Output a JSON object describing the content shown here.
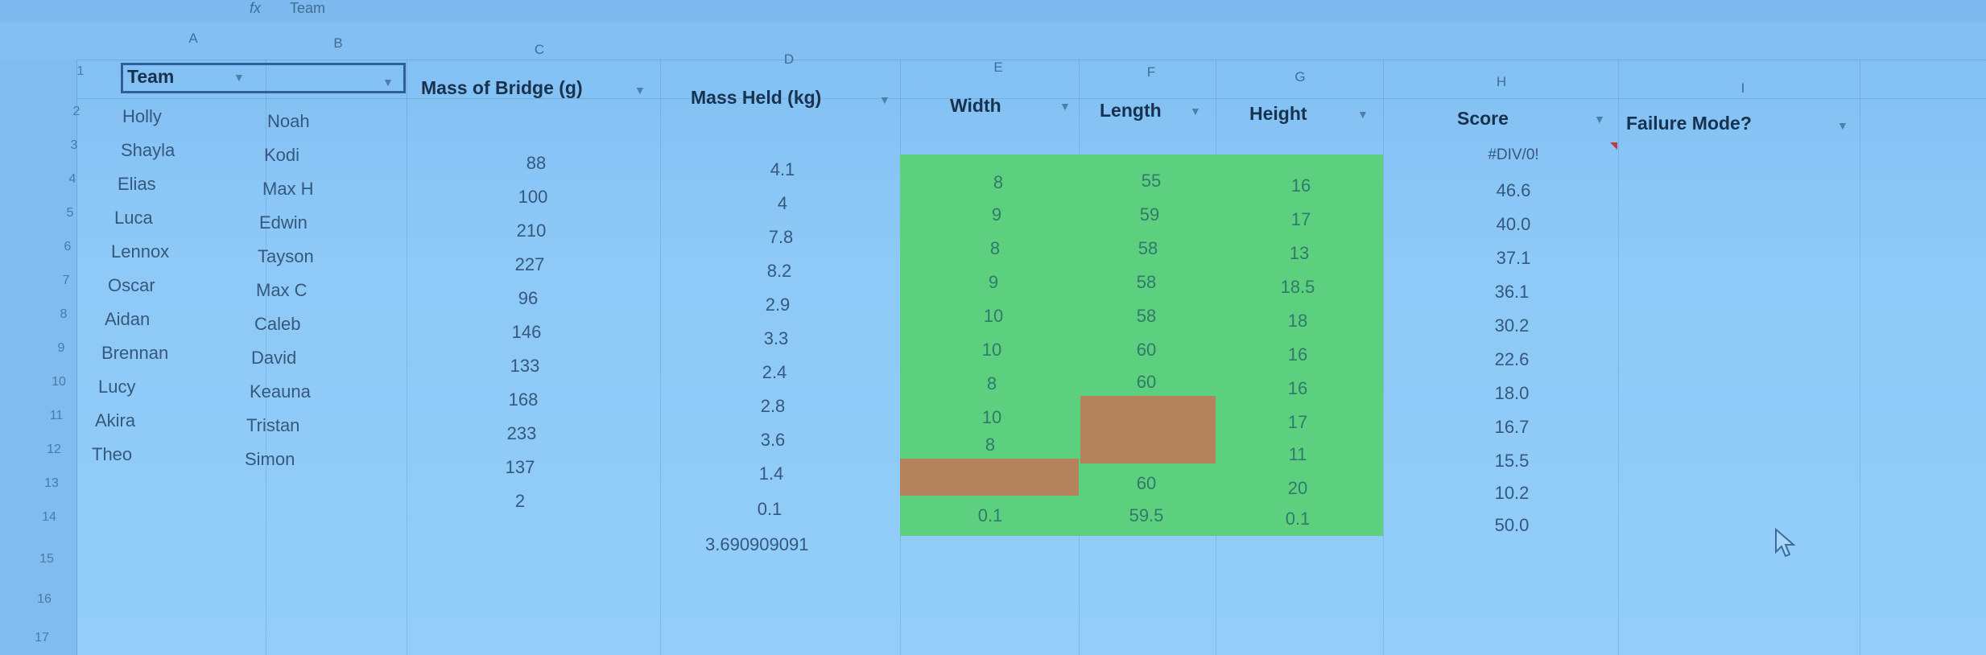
{
  "formula_bar": {
    "fx": "fx",
    "value": "Team"
  },
  "columns": [
    "A",
    "B",
    "C",
    "D",
    "E",
    "F",
    "G",
    "H",
    "I"
  ],
  "rows": [
    "1",
    "2",
    "3",
    "4",
    "5",
    "6",
    "7",
    "8",
    "9",
    "10",
    "11",
    "12",
    "13",
    "14",
    "15",
    "16",
    "17"
  ],
  "headers": {
    "team": "Team",
    "mass_bridge": "Mass of Bridge (g)",
    "mass_held": "Mass Held (kg)",
    "width": "Width",
    "length": "Length",
    "height": "Height",
    "score": "Score",
    "failure": "Failure Mode?"
  },
  "data": [
    {
      "a": "Holly",
      "b": "Noah",
      "c": "",
      "d": "",
      "e": "",
      "f": "",
      "g": "",
      "h": ""
    },
    {
      "a": "Shayla",
      "b": "Kodi",
      "c": "88",
      "d": "4.1",
      "e": "",
      "f": "",
      "g": "",
      "h": "#DIV/0!"
    },
    {
      "a": "Elias",
      "b": "Max H",
      "c": "100",
      "d": "4",
      "e": "8",
      "f": "55",
      "g": "16",
      "h": "46.6"
    },
    {
      "a": "Luca",
      "b": "Edwin",
      "c": "210",
      "d": "7.8",
      "e": "9",
      "f": "59",
      "g": "17",
      "h": "40.0"
    },
    {
      "a": "Lennox",
      "b": "Tayson",
      "c": "227",
      "d": "8.2",
      "e": "8",
      "f": "58",
      "g": "13",
      "h": "37.1"
    },
    {
      "a": "Oscar",
      "b": "Max C",
      "c": "96",
      "d": "2.9",
      "e": "9",
      "f": "58",
      "g": "18.5",
      "h": "36.1"
    },
    {
      "a": "Aidan",
      "b": "Caleb",
      "c": "146",
      "d": "3.3",
      "e": "10",
      "f": "58",
      "g": "18",
      "h": "30.2"
    },
    {
      "a": "Brennan",
      "b": "David",
      "c": "133",
      "d": "2.4",
      "e": "10",
      "f": "60",
      "g": "16",
      "h": "22.6"
    },
    {
      "a": "Lucy",
      "b": "Keauna",
      "c": "168",
      "d": "2.8",
      "e": "8",
      "f": "60",
      "g": "16",
      "h": "18.0"
    },
    {
      "a": "Akira",
      "b": "Tristan",
      "c": "233",
      "d": "3.6",
      "e": "10",
      "f": "",
      "g": "17",
      "h": "16.7"
    },
    {
      "a": "Theo",
      "b": "Simon",
      "c": "137",
      "d": "1.4",
      "e": "8",
      "f": "",
      "g": "11",
      "h": "15.5"
    },
    {
      "a": "",
      "b": "",
      "c": "2",
      "d": "0.1",
      "e": "",
      "f": "60",
      "g": "20",
      "h": "10.2"
    },
    {
      "a": "",
      "b": "",
      "c": "",
      "d": "3.690909091",
      "e": "0.1",
      "f": "59.5",
      "g": "0.1",
      "h": "50.0"
    }
  ],
  "colors": {
    "green_fill": "#5dd07f",
    "brown_fill": "#b4835c",
    "selection_border": "#2f5e9a"
  }
}
